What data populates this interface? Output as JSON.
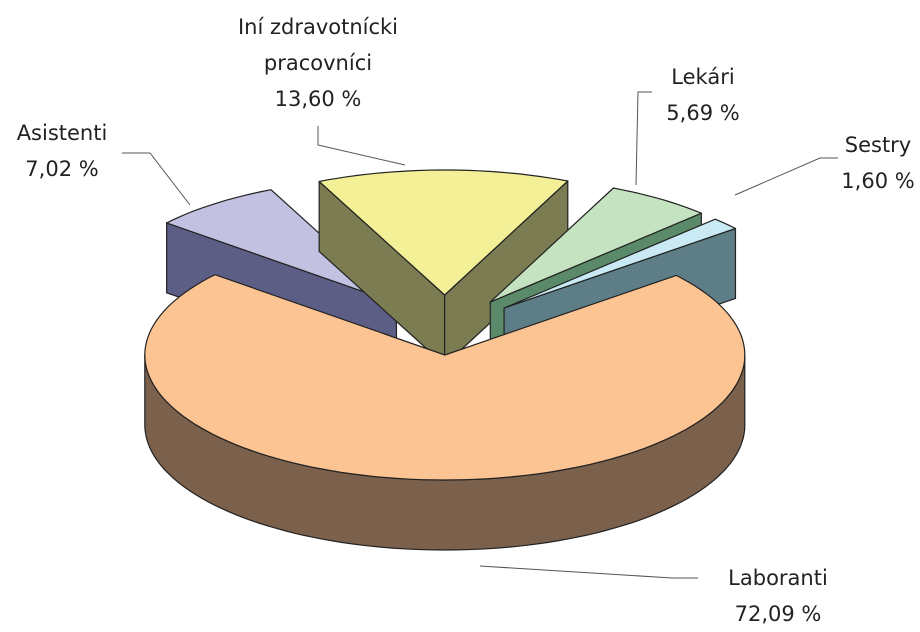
{
  "chart_data": {
    "type": "pie3d",
    "categories": [
      "Laboranti",
      "Asistenti",
      "Iní zdravotnícki pracovníci",
      "Lekári",
      "Sestry"
    ],
    "values": [
      72.09,
      7.02,
      13.6,
      5.69,
      1.6
    ],
    "value_labels": [
      "72,09 %",
      "7,02 %",
      "13,60 %",
      "5,69 %",
      "1,60 %"
    ],
    "colors": [
      "#fcc493",
      "#c2c1e1",
      "#f3f097",
      "#c5e3c0",
      "#c9eaf4"
    ],
    "side_colors": [
      "#7b604c",
      "#5d5e86",
      "#7c7c52",
      "#5b8a6a",
      "#5e7e87"
    ]
  }
}
